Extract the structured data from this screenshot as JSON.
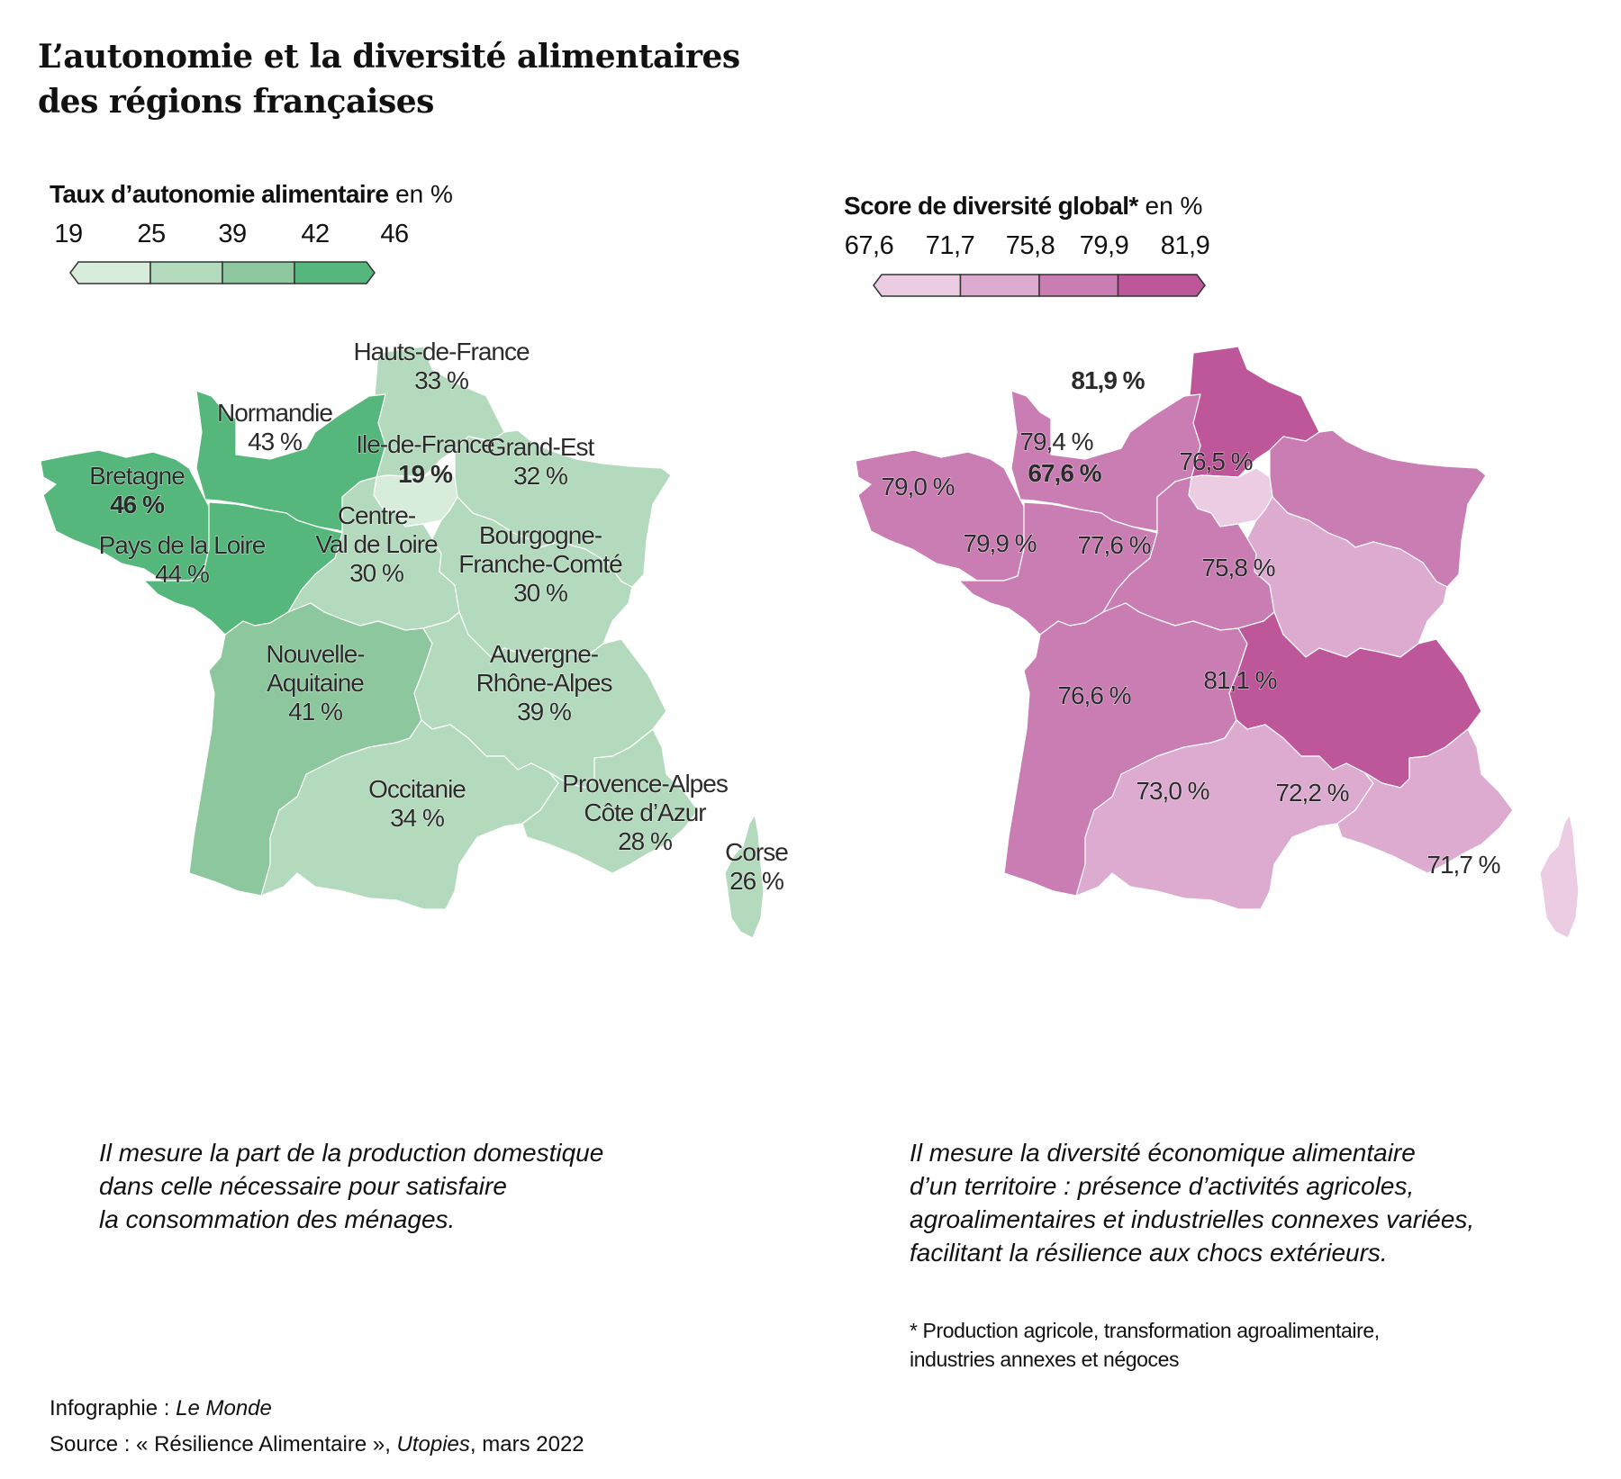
{
  "title": {
    "line1": "L’autonomie et la diversité alimentaires",
    "line2": "des régions françaises"
  },
  "legend_left": {
    "title_bold": "Taux d’autonomie alimentaire",
    "title_unit": "en %",
    "ticks": [
      "19",
      "25",
      "39",
      "42",
      "46"
    ],
    "colors": [
      "#d8ecdc",
      "#b4dabd",
      "#8dc79d",
      "#55b77b"
    ]
  },
  "legend_right": {
    "title_bold": "Score de diversité global*",
    "title_unit": "en %",
    "ticks": [
      "67,6",
      "71,7",
      "75,8",
      "79,9",
      "81,9"
    ],
    "colors": [
      "#ebcce3",
      "#dcabcf",
      "#c97db2",
      "#bd5799"
    ]
  },
  "chart_data": [
    {
      "type": "choropleth",
      "title": "Taux d’autonomie alimentaire en %",
      "unit": "%",
      "bins": [
        19,
        25,
        39,
        42,
        46
      ],
      "regions": [
        {
          "name": "Hauts-de-France",
          "value": 33,
          "label": "33 %",
          "bold": false
        },
        {
          "name": "Normandie",
          "value": 43,
          "label": "43 %",
          "bold": false
        },
        {
          "name": "Ile-de-France",
          "value": 19,
          "label": "19 %",
          "bold": true
        },
        {
          "name": "Grand-Est",
          "value": 32,
          "label": "32 %",
          "bold": false
        },
        {
          "name": "Bretagne",
          "value": 46,
          "label": "46 %",
          "bold": true
        },
        {
          "name": "Pays de la Loire",
          "value": 44,
          "label": "44 %",
          "bold": false
        },
        {
          "name": "Centre-Val de Loire",
          "value": 30,
          "label": "30 %",
          "bold": false,
          "name_lines": [
            "Centre-",
            "Val de Loire"
          ]
        },
        {
          "name": "Bourgogne-Franche-Comté",
          "value": 30,
          "label": "30 %",
          "bold": false,
          "name_lines": [
            "Bourgogne-",
            "Franche-Comté"
          ]
        },
        {
          "name": "Nouvelle-Aquitaine",
          "value": 41,
          "label": "41 %",
          "bold": false,
          "name_lines": [
            "Nouvelle-",
            "Aquitaine"
          ]
        },
        {
          "name": "Auvergne-Rhône-Alpes",
          "value": 39,
          "label": "39 %",
          "bold": false,
          "name_lines": [
            "Auvergne-",
            "Rhône-Alpes"
          ]
        },
        {
          "name": "Occitanie",
          "value": 34,
          "label": "34 %",
          "bold": false
        },
        {
          "name": "Provence-Alpes Côte d’Azur",
          "value": 28,
          "label": "28 %",
          "bold": false,
          "name_lines": [
            "Provence-Alpes",
            "Côte d’Azur"
          ]
        },
        {
          "name": "Corse",
          "value": 26,
          "label": "26 %",
          "bold": false
        }
      ]
    },
    {
      "type": "choropleth",
      "title": "Score de diversité global* en %",
      "unit": "%",
      "bins": [
        67.6,
        71.7,
        75.8,
        79.9,
        81.9
      ],
      "regions": [
        {
          "name": "Hauts-de-France",
          "value": 81.9,
          "label": "81,9 %",
          "bold": true
        },
        {
          "name": "Normandie",
          "value": 79.4,
          "label": "79,4 %",
          "bold": false
        },
        {
          "name": "Ile-de-France",
          "value": 67.6,
          "label": "67,6 %",
          "bold": true
        },
        {
          "name": "Grand-Est",
          "value": 76.5,
          "label": "76,5 %",
          "bold": false
        },
        {
          "name": "Bretagne",
          "value": 79.0,
          "label": "79,0 %",
          "bold": false
        },
        {
          "name": "Pays de la Loire",
          "value": 79.9,
          "label": "79,9 %",
          "bold": false
        },
        {
          "name": "Centre-Val de Loire",
          "value": 77.6,
          "label": "77,6 %",
          "bold": false
        },
        {
          "name": "Bourgogne-Franche-Comté",
          "value": 75.8,
          "label": "75,8 %",
          "bold": false
        },
        {
          "name": "Nouvelle-Aquitaine",
          "value": 76.6,
          "label": "76,6 %",
          "bold": false
        },
        {
          "name": "Auvergne-Rhône-Alpes",
          "value": 81.1,
          "label": "81,1 %",
          "bold": false
        },
        {
          "name": "Occitanie",
          "value": 73.0,
          "label": "73,0 %",
          "bold": false
        },
        {
          "name": "Provence-Alpes Côte d’Azur",
          "value": 72.2,
          "label": "72,2 %",
          "bold": false
        },
        {
          "name": "Corse",
          "value": 71.7,
          "label": "71,7 %",
          "bold": false
        }
      ]
    }
  ],
  "description_left": {
    "lines": [
      "Il mesure la part de la production domestique",
      "dans celle nécessaire pour satisfaire",
      "la consommation des ménages."
    ]
  },
  "description_right": {
    "lines": [
      "Il mesure la diversité économique alimentaire",
      "d’un territoire : présence d’activités agricoles,",
      "agroalimentaires et industrielles connexes variées,",
      "facilitant la résilience aux chocs extérieurs."
    ]
  },
  "footnote": {
    "lines": [
      "* Production agricole, transformation agroalimentaire,",
      "industries annexes et négoces"
    ]
  },
  "credits": {
    "infographie_label": "Infographie : ",
    "infographie_value": "Le Monde",
    "source_label": "Source : « Résilience Alimentaire », ",
    "source_publisher": "Utopies",
    "source_date": ", mars 2022"
  }
}
